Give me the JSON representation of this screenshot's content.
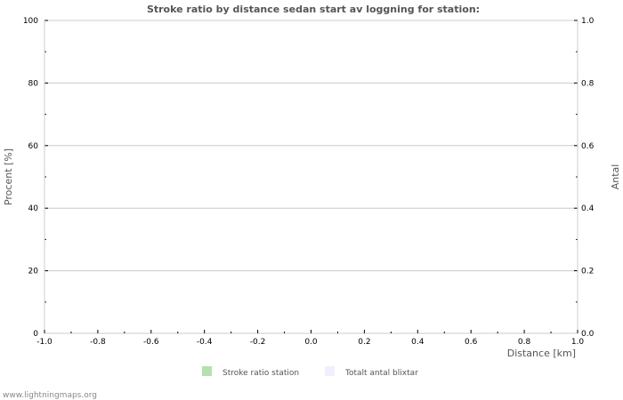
{
  "chart_data": {
    "type": "bar",
    "title": "Stroke ratio by distance  sedan start av loggning for station:",
    "xlabel": "Distance   [km]",
    "ylabel": "Procent   [%]",
    "y2label": "Antal",
    "xlim": [
      -1.0,
      1.0
    ],
    "ylim": [
      0,
      100
    ],
    "y2lim": [
      0.0,
      1.0
    ],
    "x_ticks": [
      "-1.0",
      "-0.8",
      "-0.6",
      "-0.4",
      "-0.2",
      "0.0",
      "0.2",
      "0.4",
      "0.6",
      "0.8",
      "1.0"
    ],
    "y_ticks": [
      "0",
      "20",
      "40",
      "60",
      "80",
      "100"
    ],
    "y2_ticks": [
      "0.0",
      "0.2",
      "0.4",
      "0.6",
      "0.8",
      "1.0"
    ],
    "grid": true,
    "legend_placement": "bottom",
    "series": [
      {
        "name": "Stroke ratio station",
        "color": "#b5e0b0",
        "values": []
      },
      {
        "name": "Totalt antal blixtar",
        "color": "#f0f0fc",
        "values": []
      }
    ]
  },
  "footer": "www.lightningmaps.org"
}
